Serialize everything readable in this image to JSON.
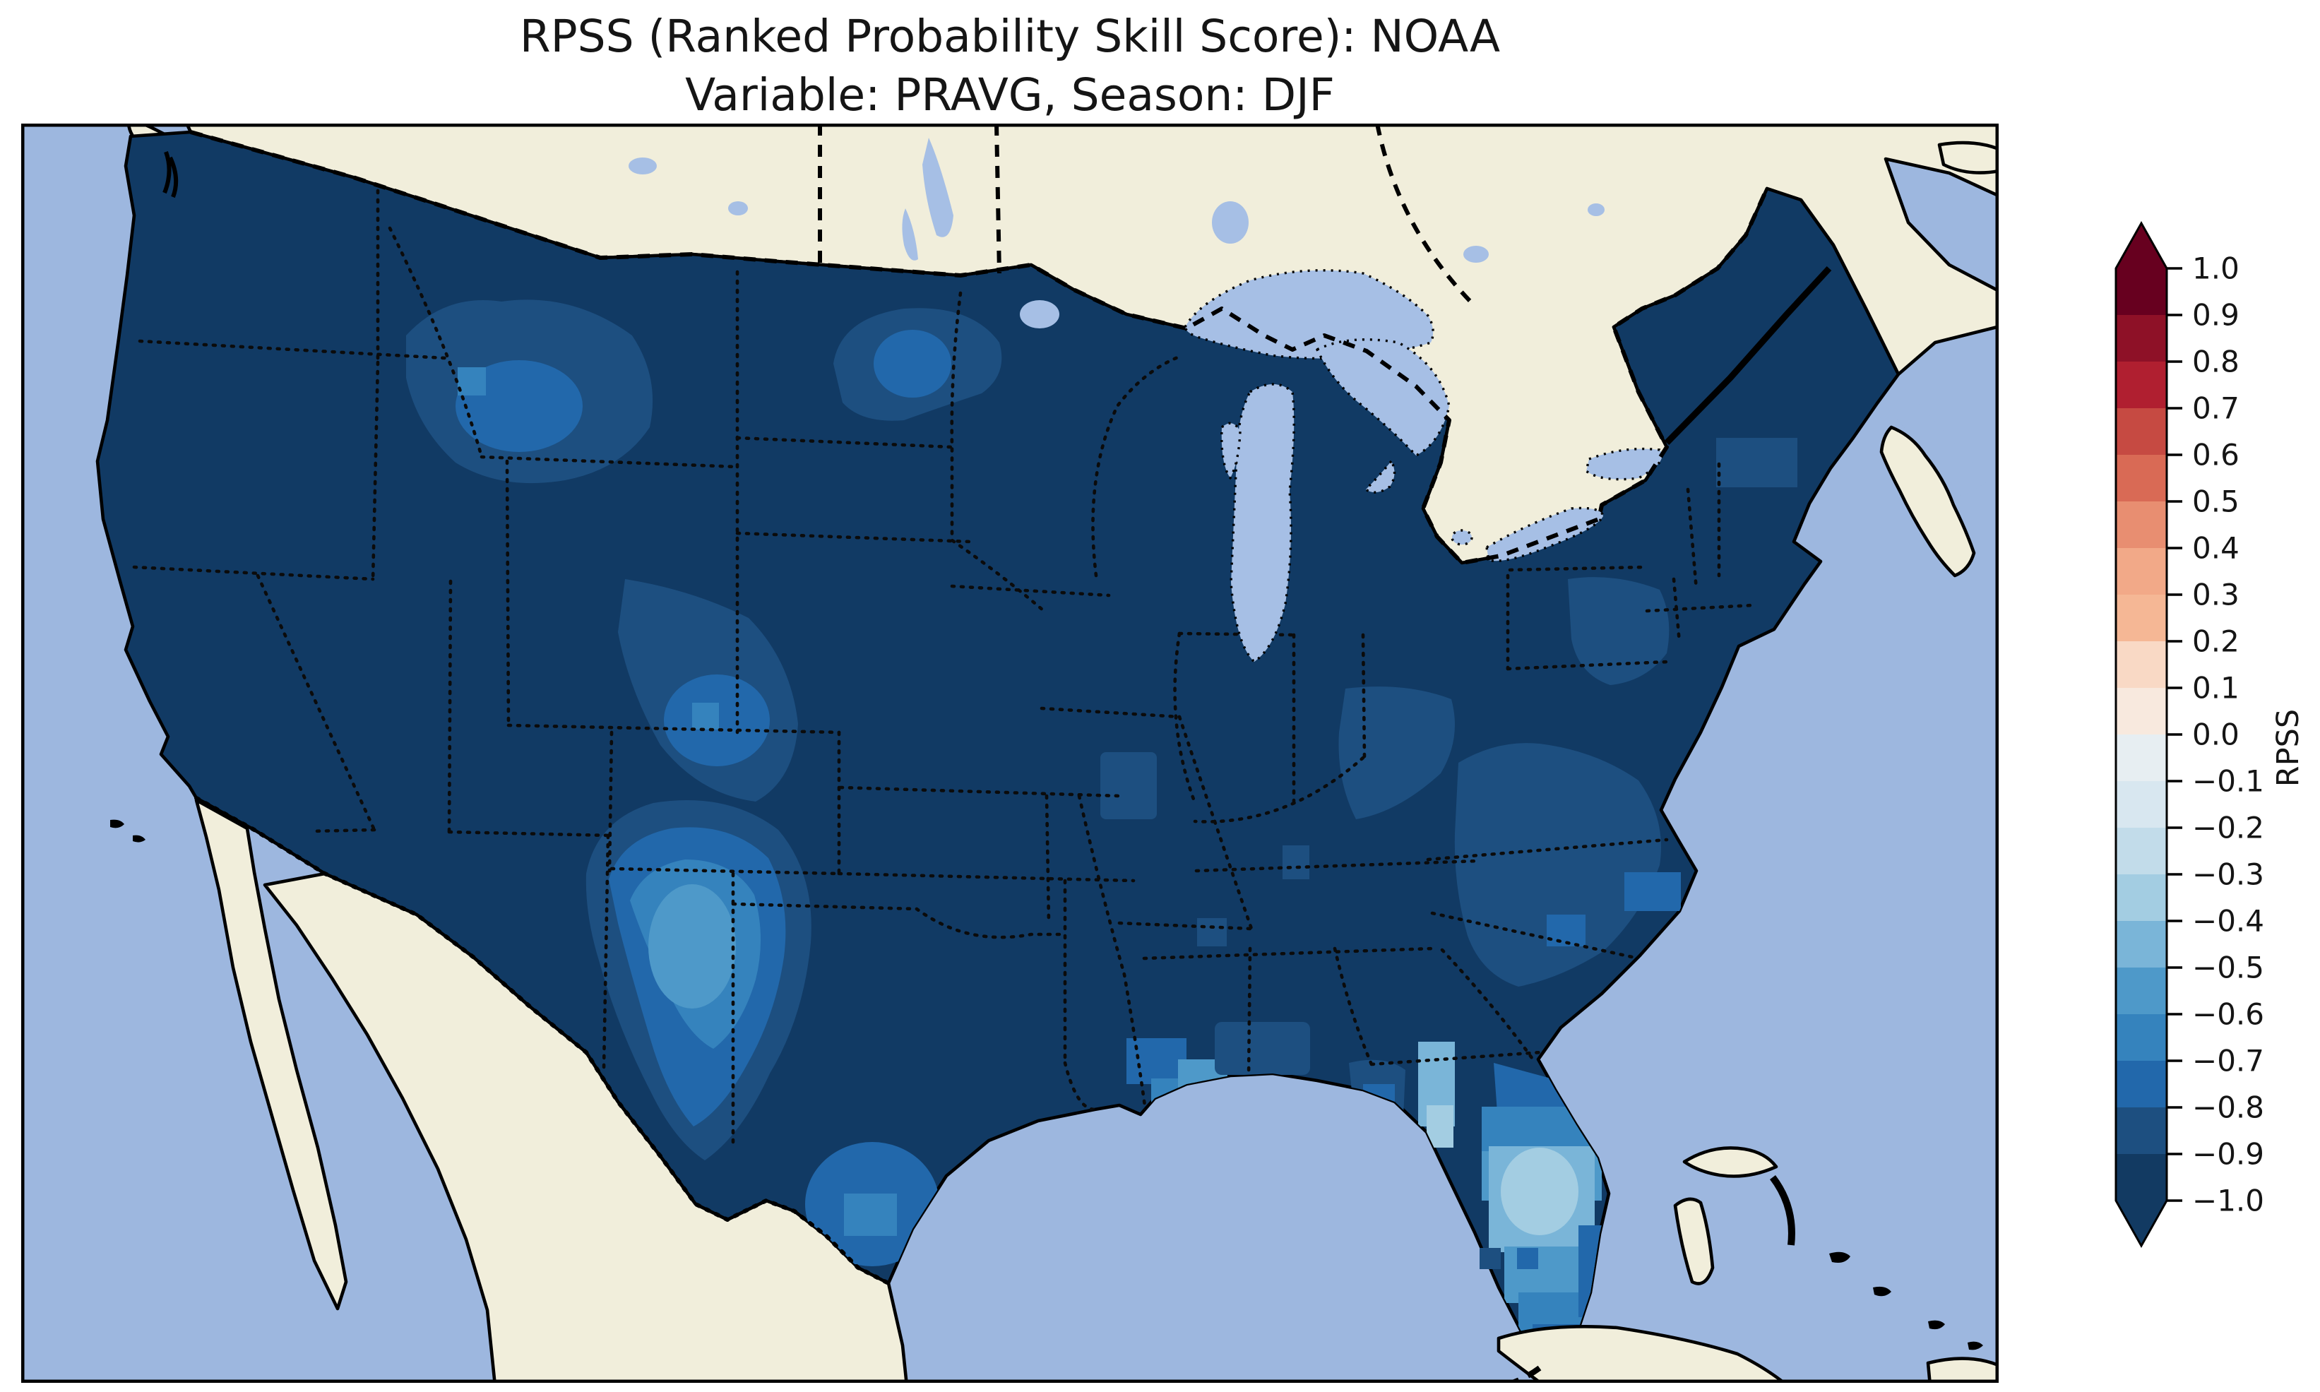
{
  "title": {
    "line1": "RPSS (Ranked Probability Skill Score): NOAA",
    "line2": "Variable: PRAVG, Season: DJF"
  },
  "colorbar": {
    "label": "RPSS",
    "ticks": [
      {
        "value": 1.0,
        "label": "1.0"
      },
      {
        "value": 0.9,
        "label": "0.9"
      },
      {
        "value": 0.8,
        "label": "0.8"
      },
      {
        "value": 0.7,
        "label": "0.7"
      },
      {
        "value": 0.6,
        "label": "0.6"
      },
      {
        "value": 0.5,
        "label": "0.5"
      },
      {
        "value": 0.4,
        "label": "0.4"
      },
      {
        "value": 0.3,
        "label": "0.3"
      },
      {
        "value": 0.2,
        "label": "0.2"
      },
      {
        "value": 0.1,
        "label": "0.1"
      },
      {
        "value": 0.0,
        "label": "0.0"
      },
      {
        "value": -0.1,
        "label": "−0.1"
      },
      {
        "value": -0.2,
        "label": "−0.2"
      },
      {
        "value": -0.3,
        "label": "−0.3"
      },
      {
        "value": -0.4,
        "label": "−0.4"
      },
      {
        "value": -0.5,
        "label": "−0.5"
      },
      {
        "value": -0.6,
        "label": "−0.6"
      },
      {
        "value": -0.7,
        "label": "−0.7"
      },
      {
        "value": -0.8,
        "label": "−0.8"
      },
      {
        "value": -0.9,
        "label": "−0.9"
      },
      {
        "value": -1.0,
        "label": "−1.0"
      }
    ],
    "segment_colors": [
      "#67001f",
      "#8e1127",
      "#b01f30",
      "#c64a42",
      "#d96a55",
      "#e88e71",
      "#f2a988",
      "#f5b795",
      "#f9d9c5",
      "#f8e9de",
      "#e7eef2",
      "#d8e7f0",
      "#c2dcea",
      "#a3cde2",
      "#7ab5d8",
      "#4e99c9",
      "#3583bd",
      "#2268ab",
      "#1d4f80",
      "#123a62"
    ],
    "over_arrow_color": "#67001f",
    "under_arrow_color": "#123a62"
  },
  "colors": {
    "ocean": "#9db7df",
    "land": "#f1eedb",
    "lake": "#a6bfe5",
    "coast": "#000000",
    "frame": "#000000",
    "bin_m09": "#113a64",
    "bin_m08": "#1d4f80",
    "bin_m07": "#2268ab",
    "bin_m06": "#3583bd",
    "bin_m05": "#4e99c9",
    "bin_m04": "#7ab5d8",
    "bin_m03": "#a3cde2"
  },
  "chart_data": {
    "type": "heatmap",
    "subtype": "gridded choropleth map (matplotlib/cartopy style)",
    "title": "RPSS (Ranked Probability Skill Score): NOAA",
    "subtitle": "Variable: PRAVG, Season: DJF",
    "metric": "RPSS",
    "variable": "PRAVG",
    "season": "DJF",
    "source_model": "NOAA",
    "colorbar_label": "RPSS",
    "value_range": [
      -1.0,
      1.0
    ],
    "colorbar_tick_values": [
      1.0,
      0.9,
      0.8,
      0.7,
      0.6,
      0.5,
      0.4,
      0.3,
      0.2,
      0.1,
      0.0,
      -0.1,
      -0.2,
      -0.3,
      -0.4,
      -0.5,
      -0.6,
      -0.7,
      -0.8,
      -0.9,
      -1.0
    ],
    "colormap": "RdBu diverging, 0.1-wide discrete bins, pointed over/under arrows beyond +1.0 and -1.0",
    "legend_position": "right vertical colorbar",
    "geographic_extent": "Continental United States, with southern Canada, northern Mexico and Baja California, Gulf of Mexico, Great Lakes, Bahamas, Cuba; data shown only over CONUS land (Canada/Mexico/water masked cream or light blue)",
    "map_regions": [
      {
        "region": "Most of CONUS (base field)",
        "approx_rpss": -0.95
      },
      {
        "region": "Northwest/central Montana band into Idaho",
        "approx_rpss": -0.8,
        "core_rpss": -0.72
      },
      {
        "region": "North Dakota / northern plains patch",
        "approx_rpss": -0.8,
        "core_rpss": -0.72
      },
      {
        "region": "SE Wyoming - N Colorado - SW Nebraska band",
        "approx_rpss": -0.8,
        "core_rpss": -0.7
      },
      {
        "region": "Southern High Plains (E New Mexico / TX-OK panhandles / W Kansas)",
        "approx_rpss": -0.7,
        "core_rpss": -0.45
      },
      {
        "region": "South Texas",
        "approx_rpss": -0.7
      },
      {
        "region": "Louisiana coast / delta",
        "approx_rpss": -0.6
      },
      {
        "region": "Mississippi-Alabama coast",
        "approx_rpss": -0.8
      },
      {
        "region": "Missouri (west-central) spot",
        "approx_rpss": -0.85
      },
      {
        "region": "Kentucky / West Virginia patch",
        "approx_rpss": -0.85
      },
      {
        "region": "Maryland / SE Pennsylvania patch",
        "approx_rpss": -0.85
      },
      {
        "region": "Virginia-Carolinas piedmont and coast",
        "approx_rpss": -0.8,
        "coastal_cells_rpss": -0.72
      },
      {
        "region": "Southern Georgia cells",
        "approx_rpss": -0.82
      },
      {
        "region": "Florida big bend coastal cells",
        "approx_rpss": -0.35
      },
      {
        "region": "Florida peninsula gradient (north to center)",
        "approx_rpss": -0.6,
        "core_rpss": -0.28
      },
      {
        "region": "South Florida tip",
        "approx_rpss": -0.6
      },
      {
        "region": "Florida Keys isolated cells (west to east)",
        "approx_rpss": [
          -0.85,
          -0.72,
          -0.55
        ]
      },
      {
        "region": "Southern New England / NY cells",
        "approx_rpss": -0.85
      },
      {
        "region": "Great Lakes, Canada, Mexico, oceans",
        "approx_rpss": null,
        "note": "no data (masked)"
      }
    ],
    "summary": "RPSS is strongly negative (-0.8 to -1.0, darkest blue) over nearly all of CONUS; least negative in central Florida (about -0.3) and the southern High Plains core (about -0.5). No positive (red) values appear on the map."
  }
}
